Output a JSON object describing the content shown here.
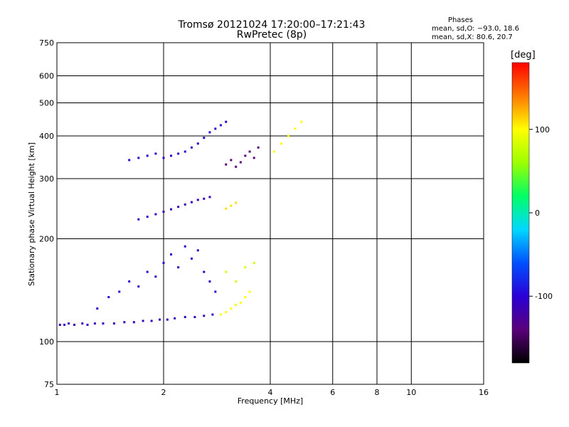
{
  "header": {
    "title_line1": "Tromsø 20121024 17:20:00–17:21:43",
    "title_line2": "RwPretec (8p)",
    "phases_title": "Phases",
    "phases_o": "mean, sd,O: −93.0, 18.6",
    "phases_x": "mean, sd,X: 80.6, 20.7"
  },
  "colorbar": {
    "unit": "[deg]",
    "ticks": [
      100,
      0,
      -100
    ],
    "range": [
      -180,
      180
    ],
    "colors": [
      "#000000",
      "#5a007a",
      "#2b00d6",
      "#0050ff",
      "#00d8ff",
      "#00ff66",
      "#9cff00",
      "#ffff00",
      "#ff7a00",
      "#ff0000"
    ]
  },
  "chart_data": {
    "type": "scatter",
    "title": "Tromsø 20121024 17:20:00–17:21:43",
    "subtitle": "RwPretec (8p)",
    "xlabel": "Frequency [MHz]",
    "ylabel": "Stationary phase Virtual Height [km]",
    "x_scale": "log",
    "y_scale": "log",
    "xlim": [
      1,
      16
    ],
    "ylim": [
      75,
      750
    ],
    "x_ticks": [
      1,
      2,
      4,
      6,
      8,
      10,
      16
    ],
    "y_ticks": [
      75,
      100,
      200,
      300,
      400,
      500,
      600,
      750
    ],
    "grid": true,
    "color_by": "phase (deg)",
    "series": [
      {
        "x": [
          1.02,
          1.05,
          1.08,
          1.12,
          1.18,
          1.22,
          1.28,
          1.35,
          1.45,
          1.55,
          1.65,
          1.75,
          1.85,
          1.95,
          2.05,
          2.15,
          2.3,
          2.45,
          2.6,
          2.75
        ],
        "y": [
          112,
          112,
          113,
          112,
          113,
          112,
          113,
          113,
          113,
          114,
          114,
          115,
          115,
          116,
          116,
          117,
          118,
          118,
          119,
          120
        ],
        "phase": -110
      },
      {
        "x": [
          1.3,
          1.4,
          1.5,
          1.6,
          1.7,
          1.8,
          1.9,
          2.0,
          2.1,
          2.2,
          2.3,
          2.4,
          2.5,
          2.6,
          2.7,
          2.8
        ],
        "y": [
          125,
          135,
          140,
          150,
          145,
          160,
          155,
          170,
          180,
          165,
          190,
          175,
          185,
          160,
          150,
          140
        ],
        "phase": -105
      },
      {
        "x": [
          1.7,
          1.8,
          1.9,
          2.0,
          2.1,
          2.2,
          2.3,
          2.4,
          2.5,
          2.6,
          2.7
        ],
        "y": [
          228,
          232,
          236,
          240,
          244,
          248,
          252,
          256,
          260,
          262,
          265
        ],
        "phase": -110
      },
      {
        "x": [
          1.6,
          1.7,
          1.8,
          1.9,
          2.0,
          2.1,
          2.2,
          2.3
        ],
        "y": [
          340,
          345,
          350,
          355,
          345,
          350,
          355,
          360
        ],
        "phase": -105
      },
      {
        "x": [
          2.4,
          2.5,
          2.6,
          2.7,
          2.8,
          2.9,
          3.0
        ],
        "y": [
          370,
          380,
          395,
          410,
          420,
          430,
          440
        ],
        "phase": -100
      },
      {
        "x": [
          3.0,
          3.1,
          3.2,
          3.3,
          3.4,
          3.5,
          3.6,
          3.7
        ],
        "y": [
          330,
          340,
          325,
          335,
          350,
          360,
          345,
          370
        ],
        "phase": -140
      },
      {
        "x": [
          2.9,
          3.0,
          3.1,
          3.2,
          3.3,
          3.4,
          3.5
        ],
        "y": [
          120,
          122,
          125,
          128,
          130,
          135,
          140
        ],
        "phase": 100
      },
      {
        "x": [
          3.0,
          3.2,
          3.4,
          3.6
        ],
        "y": [
          160,
          150,
          165,
          170
        ],
        "phase": 80
      },
      {
        "x": [
          3.0,
          3.1,
          3.2
        ],
        "y": [
          245,
          250,
          255
        ],
        "phase": 110
      },
      {
        "x": [
          4.1,
          4.3,
          4.5,
          4.7,
          4.9
        ],
        "y": [
          360,
          380,
          400,
          420,
          440
        ],
        "phase": 100
      }
    ]
  }
}
